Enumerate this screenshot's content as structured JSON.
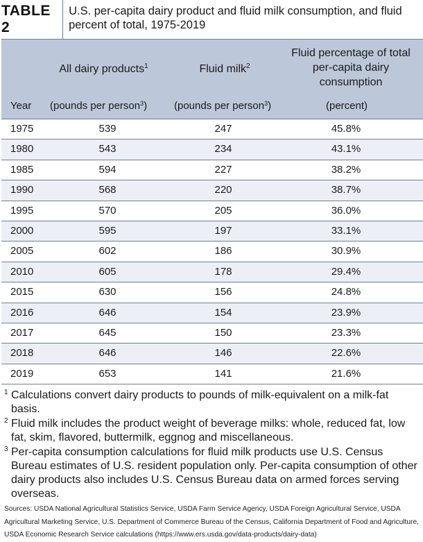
{
  "table": {
    "label": "TABLE 2",
    "title": "U.S. per-capita dairy product and fluid milk consumption, and fluid percent of total, 1975-2019",
    "headers": {
      "all_dairy": "All dairy products",
      "all_dairy_mark": "1",
      "fluid_milk": "Fluid milk",
      "fluid_milk_mark": "2",
      "fluid_pct": "Fluid percentage of total per-capita dairy consumption"
    },
    "subheaders": {
      "year": "Year",
      "all_dairy_unit_pre": "(pounds per person",
      "all_dairy_unit_mark": "3",
      "all_dairy_unit_post": ")",
      "fluid_unit_pre": "(pounds per person",
      "fluid_unit_mark": "3",
      "fluid_unit_post": ")",
      "pct_unit": "(percent)"
    },
    "rows": [
      {
        "year": "1975",
        "all": "539",
        "fluid": "247",
        "pct": "45.8%"
      },
      {
        "year": "1980",
        "all": "543",
        "fluid": "234",
        "pct": "43.1%"
      },
      {
        "year": "1985",
        "all": "594",
        "fluid": "227",
        "pct": "38.2%"
      },
      {
        "year": "1990",
        "all": "568",
        "fluid": "220",
        "pct": "38.7%"
      },
      {
        "year": "1995",
        "all": "570",
        "fluid": "205",
        "pct": "36.0%"
      },
      {
        "year": "2000",
        "all": "595",
        "fluid": "197",
        "pct": "33.1%"
      },
      {
        "year": "2005",
        "all": "602",
        "fluid": "186",
        "pct": "30.9%"
      },
      {
        "year": "2010",
        "all": "605",
        "fluid": "178",
        "pct": "29.4%"
      },
      {
        "year": "2015",
        "all": "630",
        "fluid": "156",
        "pct": "24.8%"
      },
      {
        "year": "2016",
        "all": "646",
        "fluid": "154",
        "pct": "23.9%"
      },
      {
        "year": "2017",
        "all": "645",
        "fluid": "150",
        "pct": "23.3%"
      },
      {
        "year": "2018",
        "all": "646",
        "fluid": "146",
        "pct": "22.6%"
      },
      {
        "year": "2019",
        "all": "653",
        "fluid": "141",
        "pct": "21.6%"
      }
    ]
  },
  "footnotes": [
    {
      "mark": "1",
      "text": "Calculations convert dairy products to pounds of milk-equivalent on a milk-fat basis."
    },
    {
      "mark": "2",
      "text": "Fluid milk includes the product weight of beverage milks: whole, reduced fat, low fat, skim, flavored, buttermilk, eggnog and miscellaneous."
    },
    {
      "mark": "3",
      "text": "Per-capita consumption calculations for fluid milk products use U.S. Census Bureau estimates of U.S. resident population only. Per-capita consumption of other dairy products also includes U.S. Census Bureau data on armed forces serving overseas."
    }
  ],
  "sources": "Sources: USDA National Agricultural Statistics Service, USDA Farm Service Agency, USDA Foreign Agricultural Service, USDA Agricultural Marketing Service, U.S. Department of Commerce Bureau of the Census, California Department of Food and Agriculture, USDA Economic Research Service calculations (https://www.ers.usda.gov/data-products/dairy-data)",
  "colors": {
    "header_bg": "#bcc8d9",
    "row_alt_bg": "#ecf0f6",
    "rule": "#6f7f95"
  }
}
